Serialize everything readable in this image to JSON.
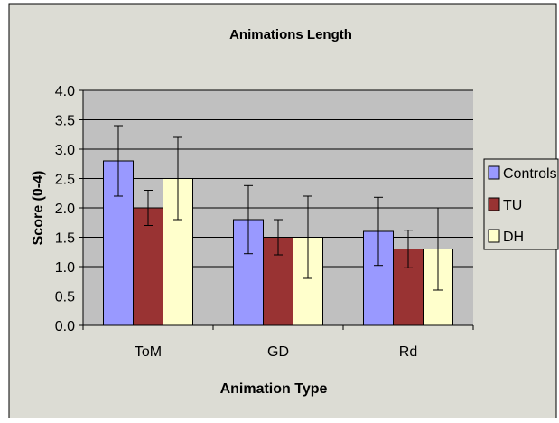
{
  "chart_data": {
    "type": "bar",
    "title": "Animations Length",
    "xlabel": "Animation Type",
    "ylabel": "Score (0-4)",
    "categories": [
      "ToM",
      "GD",
      "Rd"
    ],
    "ylim": [
      0,
      4
    ],
    "yticks": [
      "0.0",
      "0.5",
      "1.0",
      "1.5",
      "2.0",
      "2.5",
      "3.0",
      "3.5",
      "4.0"
    ],
    "grid": true,
    "legend_position": "right",
    "series": [
      {
        "name": "Controls",
        "color": "#9999ff",
        "values": [
          2.8,
          1.8,
          1.6
        ],
        "error": [
          [
            2.2,
            3.4
          ],
          [
            1.22,
            2.38
          ],
          [
            1.02,
            2.18
          ]
        ]
      },
      {
        "name": "TU",
        "color": "#993333",
        "values": [
          2.0,
          1.5,
          1.3
        ],
        "error": [
          [
            1.7,
            2.3
          ],
          [
            1.2,
            1.8
          ],
          [
            0.98,
            1.62
          ]
        ]
      },
      {
        "name": "DH",
        "color": "#ffffcc",
        "values": [
          2.5,
          1.5,
          1.3
        ],
        "error": [
          [
            1.8,
            3.2
          ],
          [
            0.8,
            2.2
          ],
          [
            0.6,
            2.0
          ]
        ]
      }
    ],
    "plot_background": "#c0c0c0",
    "page_background": "#dcdcd4"
  }
}
